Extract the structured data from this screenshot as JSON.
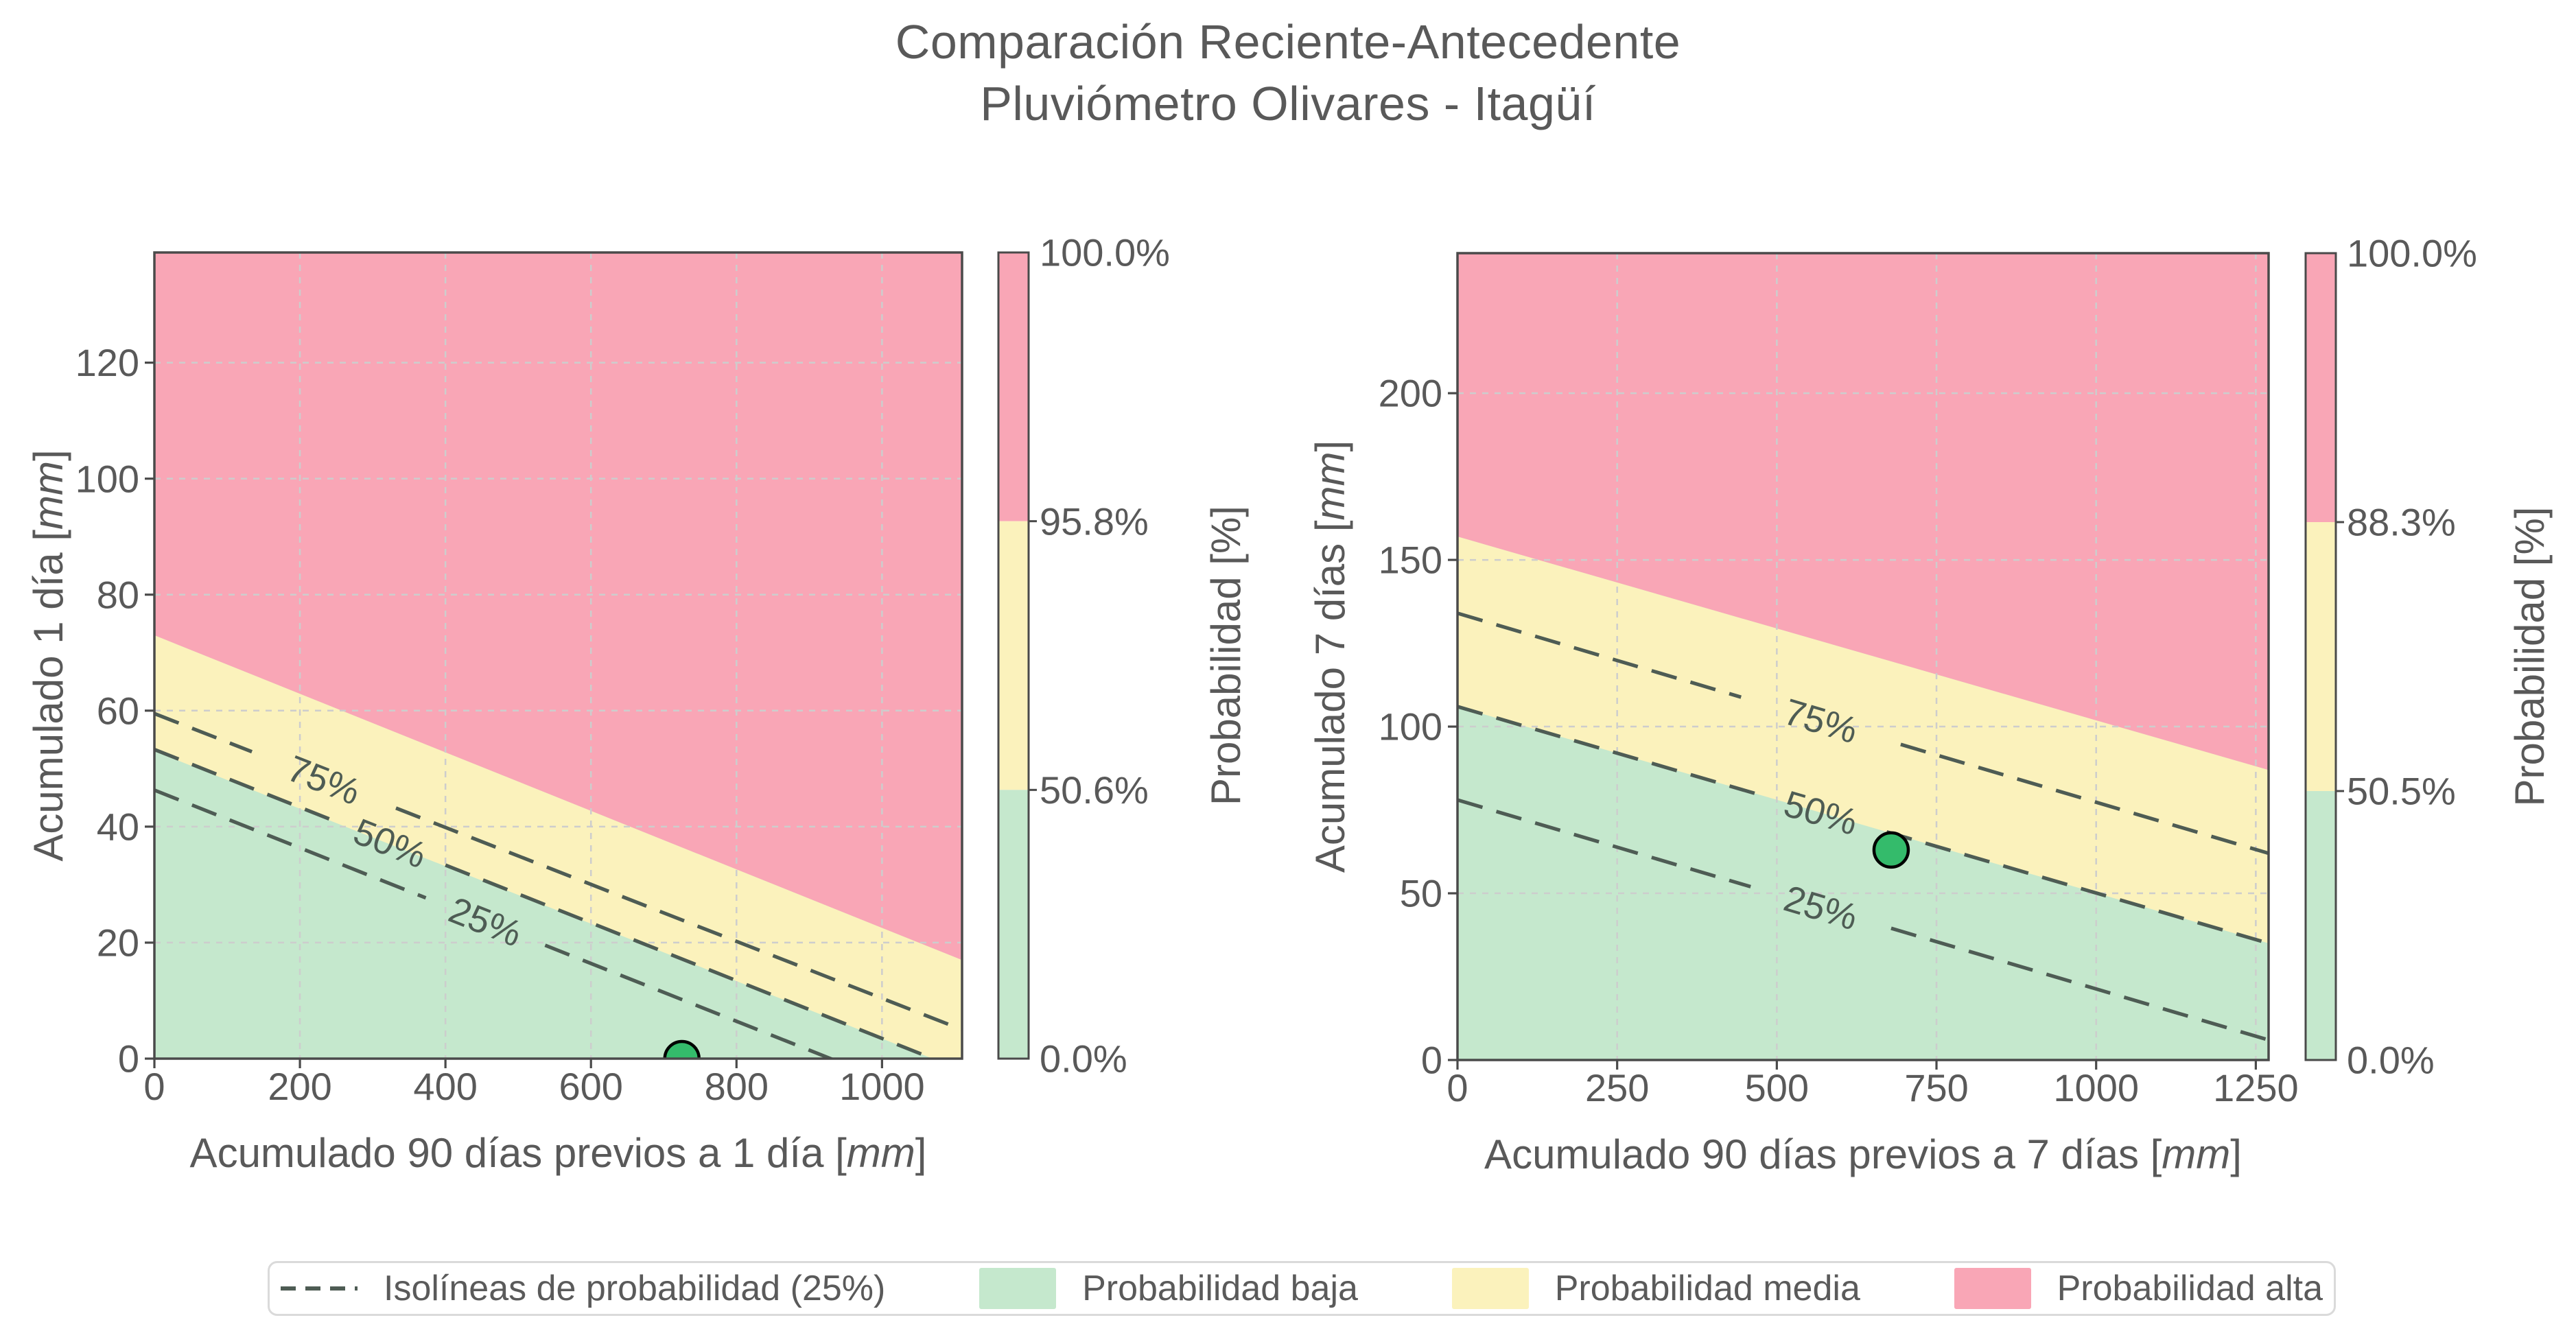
{
  "title": {
    "line1": "Comparación Reciente-Antecedente",
    "line2": "Pluviómetro Olivares - Itagüí"
  },
  "colors": {
    "prob_low": "#C5E8CD",
    "prob_medium": "#FBF2BC",
    "prob_high": "#F9A6B6",
    "isoline": "#4E5C54",
    "grid": "#CDCDCD",
    "spine": "#4A4A4A",
    "text": "#595959",
    "point_fill": "#34BB6B",
    "point_edge": "#000000",
    "legend_border": "#DADADA"
  },
  "legend": {
    "items": [
      {
        "type": "dashed-line",
        "name": "isolines",
        "label": "Isolíneas de probabilidad (25%)"
      },
      {
        "type": "patch",
        "color_key": "prob_low",
        "name": "prob-low",
        "label": "Probabilidad baja"
      },
      {
        "type": "patch",
        "color_key": "prob_medium",
        "name": "prob-medium",
        "label": "Probabilidad media"
      },
      {
        "type": "patch",
        "color_key": "prob_high",
        "name": "prob-high",
        "label": "Probabilidad alta"
      }
    ]
  },
  "chart_data": [
    {
      "type": "area",
      "id": "recent-1day",
      "xlabel_prefix": "Acumulado 90 días previos a 1 día",
      "ylabel_prefix": "Acumulado 1 día",
      "unit": "mm",
      "xlim": [
        0,
        1110
      ],
      "ylim": [
        0,
        139
      ],
      "xticks": [
        0,
        200,
        400,
        600,
        800,
        1000
      ],
      "yticks": [
        0,
        20,
        40,
        60,
        80,
        100,
        120
      ],
      "grid": true,
      "boundaries": {
        "green_yellow": {
          "x": [
            0,
            1110
          ],
          "y": [
            53,
            -2
          ]
        },
        "yellow_pink": {
          "x": [
            0,
            1110
          ],
          "y": [
            73,
            17
          ]
        }
      },
      "isolines": [
        {
          "label": "75%",
          "x": [
            0,
            1110
          ],
          "y": [
            59.5,
            5
          ],
          "label_x": 233,
          "label_halfwidth": 99
        },
        {
          "label": "50%",
          "x": [
            0,
            1110
          ],
          "y": [
            53.3,
            -2
          ],
          "label_x": 324,
          "label_halfwidth": 76
        },
        {
          "label": "25%",
          "x": [
            0,
            1110
          ],
          "y": [
            46.3,
            -9
          ],
          "label_x": 455,
          "label_halfwidth": 82
        }
      ],
      "point": {
        "x": 725,
        "y": 0
      },
      "colorbar": {
        "label": "Probabilidad [%]",
        "tick_labels_top_to_bottom": [
          "100.0%",
          "95.8%",
          "50.6%",
          "0.0%"
        ]
      }
    },
    {
      "type": "area",
      "id": "recent-7day",
      "xlabel_prefix": "Acumulado 90 días previos a 7 días",
      "ylabel_prefix": "Acumulado 7 días",
      "unit": "mm",
      "xlim": [
        0,
        1270
      ],
      "ylim": [
        0,
        242
      ],
      "xticks": [
        0,
        250,
        500,
        750,
        1000,
        1250
      ],
      "yticks": [
        0,
        50,
        100,
        150,
        200
      ],
      "grid": true,
      "boundaries": {
        "green_yellow": {
          "x": [
            0,
            1270
          ],
          "y": [
            106,
            35
          ]
        },
        "yellow_pink": {
          "x": [
            0,
            1270
          ],
          "y": [
            157,
            87
          ]
        }
      },
      "isolines": [
        {
          "label": "75%",
          "x": [
            0,
            1270
          ],
          "y": [
            134,
            62
          ],
          "label_x": 569,
          "label_halfwidth": 125
        },
        {
          "label": "50%",
          "x": [
            0,
            1270
          ],
          "y": [
            106,
            35
          ],
          "label_x": 569,
          "label_halfwidth": 103
        },
        {
          "label": "25%",
          "x": [
            0,
            1270
          ],
          "y": [
            78,
            6
          ],
          "label_x": 569,
          "label_halfwidth": 110
        }
      ],
      "point": {
        "x": 679,
        "y": 63
      },
      "colorbar": {
        "label": "Probabilidad [%]",
        "tick_labels_top_to_bottom": [
          "100.0%",
          "88.3%",
          "50.5%",
          "0.0%"
        ]
      }
    }
  ]
}
